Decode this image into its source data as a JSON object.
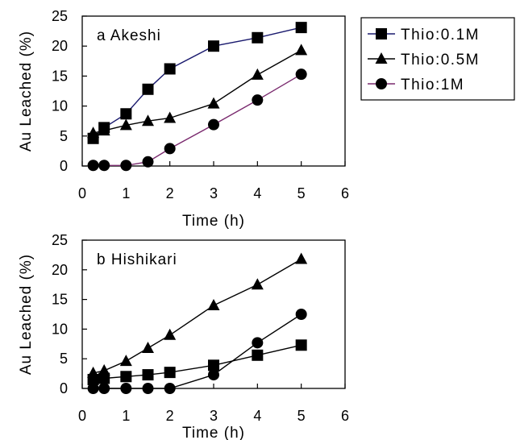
{
  "chart_data": [
    {
      "type": "line",
      "panel_label": "a  Akeshi",
      "xlabel": "Time (h)",
      "ylabel": "Au Leached (%)",
      "xlim": [
        0,
        6
      ],
      "ylim": [
        0,
        25
      ],
      "xticks": [
        0,
        1,
        2,
        3,
        4,
        5,
        6
      ],
      "yticks": [
        0,
        5,
        10,
        15,
        20,
        25
      ],
      "grid": false,
      "series": [
        {
          "name": "Thio:0.1M",
          "marker": "square",
          "color": "#1a1a6e",
          "x": [
            0.25,
            0.5,
            1,
            1.5,
            2,
            3,
            4,
            5
          ],
          "y": [
            4.6,
            6.4,
            8.7,
            12.8,
            16.2,
            20.0,
            21.4,
            23.1
          ]
        },
        {
          "name": "Thio:0.5M",
          "marker": "triangle",
          "color": "#000000",
          "x": [
            0.25,
            0.5,
            1,
            1.5,
            2,
            3,
            4,
            5
          ],
          "y": [
            5.5,
            5.9,
            6.8,
            7.5,
            8.0,
            10.4,
            15.2,
            19.3
          ]
        },
        {
          "name": "Thio:1M",
          "marker": "circle",
          "color": "#7a2a6e",
          "x": [
            0.25,
            0.5,
            1,
            1.5,
            2,
            3,
            4,
            5
          ],
          "y": [
            0.1,
            0.1,
            0.1,
            0.7,
            2.9,
            6.9,
            11.0,
            15.3
          ]
        }
      ],
      "legend_position": "right"
    },
    {
      "type": "line",
      "panel_label": "b  Hishikari",
      "xlabel": "Time (h)",
      "ylabel": "Au Leached (%)",
      "xlim": [
        0,
        6
      ],
      "ylim": [
        0,
        25
      ],
      "xticks": [
        0,
        1,
        2,
        3,
        4,
        5,
        6
      ],
      "yticks": [
        0,
        5,
        10,
        15,
        20,
        25
      ],
      "grid": false,
      "series": [
        {
          "name": "Thio:0.1M",
          "marker": "square",
          "color": "#000000",
          "x": [
            0.25,
            0.5,
            1,
            1.5,
            2,
            3,
            4,
            5
          ],
          "y": [
            1.5,
            1.7,
            2.0,
            2.3,
            2.7,
            3.9,
            5.6,
            7.3
          ]
        },
        {
          "name": "Thio:0.5M",
          "marker": "triangle",
          "color": "#000000",
          "x": [
            0.25,
            0.5,
            1,
            1.5,
            2,
            3,
            4,
            5
          ],
          "y": [
            2.6,
            3.0,
            4.6,
            6.8,
            9.0,
            14.0,
            17.5,
            21.8
          ]
        },
        {
          "name": "Thio:1M",
          "marker": "circle",
          "color": "#000000",
          "x": [
            0.25,
            0.5,
            1,
            1.5,
            2,
            3,
            4,
            5
          ],
          "y": [
            0.0,
            0.0,
            0.0,
            0.0,
            0.0,
            2.3,
            7.7,
            12.5
          ]
        }
      ]
    }
  ]
}
